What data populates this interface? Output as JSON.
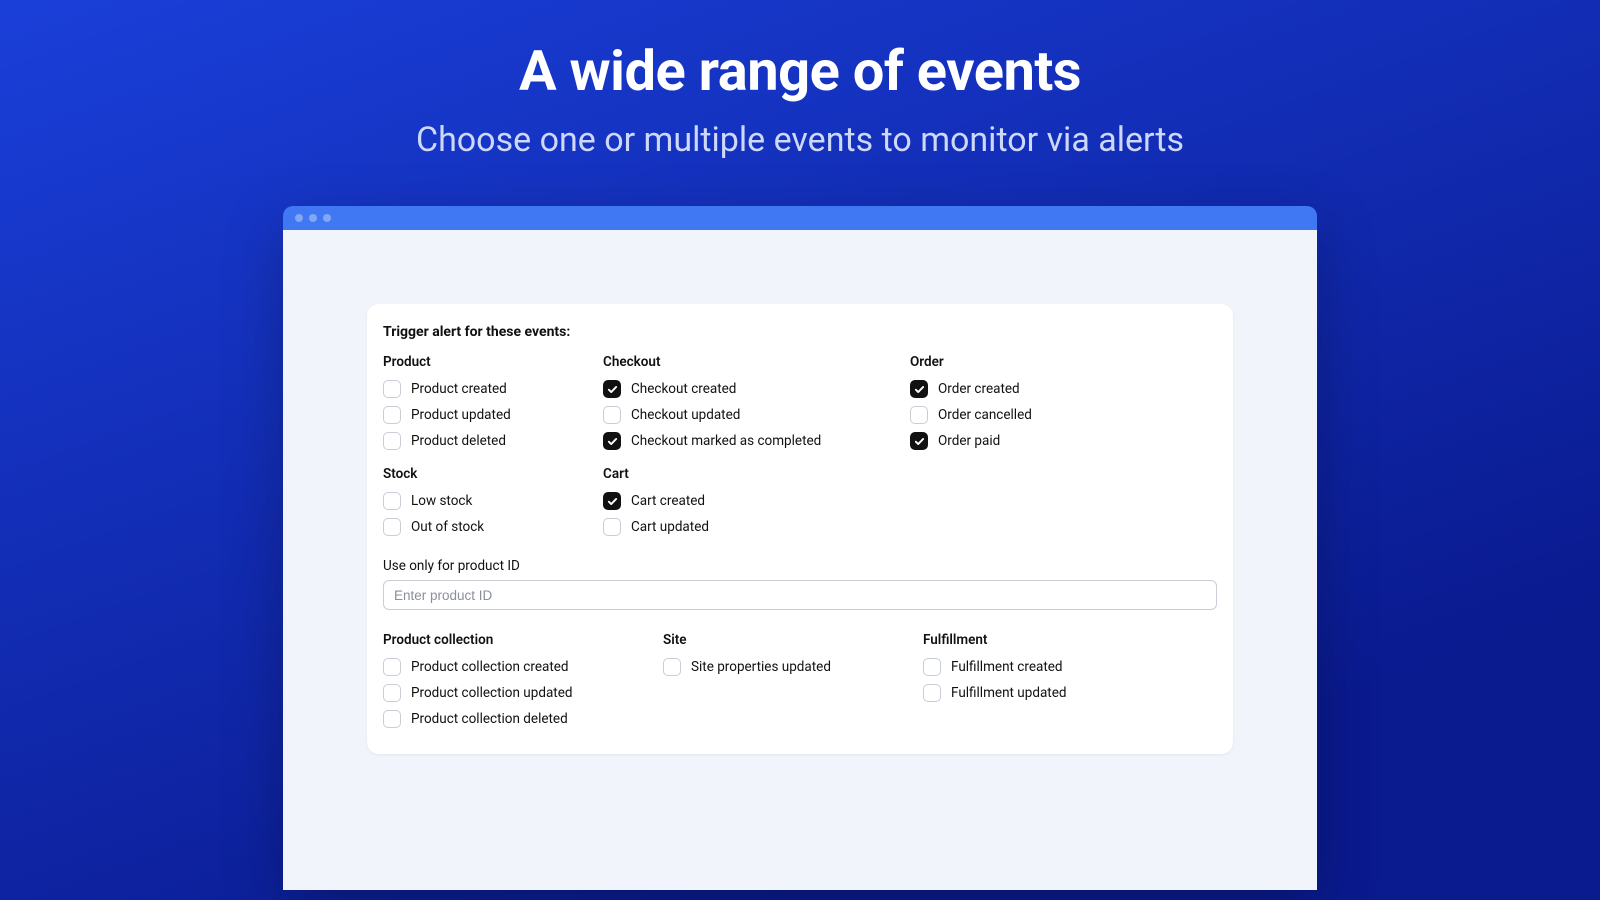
{
  "hero": {
    "title": "A wide range of events",
    "subtitle": "Choose one or multiple events to monitor via alerts"
  },
  "card": {
    "title": "Trigger alert for these events:",
    "groups_top": [
      {
        "title": "Product",
        "items": [
          {
            "label": "Product created",
            "checked": false
          },
          {
            "label": "Product updated",
            "checked": false
          },
          {
            "label": "Product deleted",
            "checked": false
          }
        ]
      },
      {
        "title": "Checkout",
        "items": [
          {
            "label": "Checkout created",
            "checked": true
          },
          {
            "label": "Checkout updated",
            "checked": false
          },
          {
            "label": "Checkout marked as completed",
            "checked": true
          }
        ]
      },
      {
        "title": "Order",
        "items": [
          {
            "label": "Order created",
            "checked": true
          },
          {
            "label": "Order cancelled",
            "checked": false
          },
          {
            "label": "Order paid",
            "checked": true
          }
        ]
      }
    ],
    "groups_mid": [
      {
        "title": "Stock",
        "items": [
          {
            "label": "Low stock",
            "checked": false
          },
          {
            "label": "Out of stock",
            "checked": false
          }
        ]
      },
      {
        "title": "Cart",
        "items": [
          {
            "label": "Cart created",
            "checked": true
          },
          {
            "label": "Cart updated",
            "checked": false
          }
        ]
      }
    ],
    "product_id_field": {
      "label": "Use only for product ID",
      "placeholder": "Enter product ID"
    },
    "groups_bottom": [
      {
        "title": "Product collection",
        "items": [
          {
            "label": "Product collection created",
            "checked": false
          },
          {
            "label": "Product collection updated",
            "checked": false
          },
          {
            "label": "Product collection deleted",
            "checked": false
          }
        ]
      },
      {
        "title": "Site",
        "items": [
          {
            "label": "Site properties updated",
            "checked": false
          }
        ]
      },
      {
        "title": "Fulfillment",
        "items": [
          {
            "label": "Fulfillment created",
            "checked": false
          },
          {
            "label": "Fulfillment updated",
            "checked": false
          }
        ]
      }
    ]
  },
  "colors": {
    "bg_gradient_start": "#1a3fd9",
    "bg_gradient_end": "#0a1a8f",
    "titlebar": "#3f78f2",
    "canvas": "#f2f4fb",
    "card_bg": "#ffffff",
    "text": "#111111",
    "subtitle": "#cdd8fb",
    "border": "#c9ced6",
    "checkbox_checked": "#111111"
  }
}
